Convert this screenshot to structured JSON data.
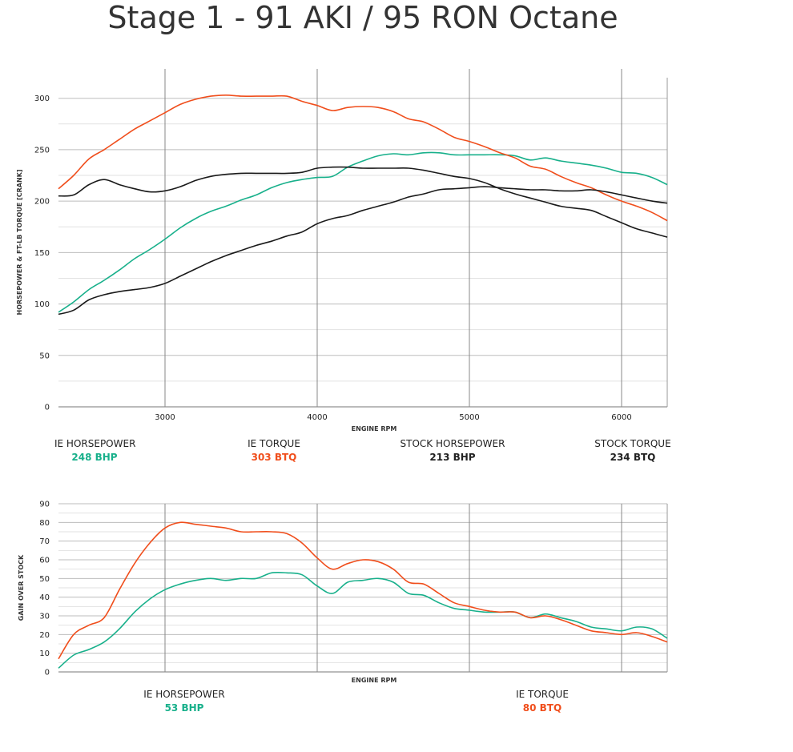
{
  "title": "Stage 1 - 91 AKI / 95 RON Octane",
  "colors": {
    "ie_hp": "#18b08b",
    "ie_tq": "#f04e1c",
    "stock": "#1a1a1a",
    "grid": "#bdbdbd",
    "vgrid": "#888888"
  },
  "chart_data": [
    {
      "type": "line",
      "title": "",
      "xlabel": "ENGINE RPM",
      "ylabel": "HORSEPOWER & FT-LB TORQUE [CRANK]",
      "xlim": [
        2300,
        6300
      ],
      "ylim": [
        0,
        320
      ],
      "xticks": [
        3000,
        4000,
        5000,
        6000
      ],
      "yticks": [
        0,
        50,
        100,
        150,
        200,
        250,
        300
      ],
      "grid": true,
      "series": [
        {
          "name": "IE HORSEPOWER",
          "color": "#18b08b",
          "points": [
            [
              2300,
              92
            ],
            [
              2400,
              102
            ],
            [
              2500,
              114
            ],
            [
              2600,
              123
            ],
            [
              2700,
              133
            ],
            [
              2800,
              144
            ],
            [
              2900,
              153
            ],
            [
              3000,
              163
            ],
            [
              3100,
              174
            ],
            [
              3200,
              183
            ],
            [
              3300,
              190
            ],
            [
              3400,
              195
            ],
            [
              3500,
              201
            ],
            [
              3600,
              206
            ],
            [
              3700,
              213
            ],
            [
              3800,
              218
            ],
            [
              3900,
              221
            ],
            [
              4000,
              223
            ],
            [
              4100,
              224
            ],
            [
              4200,
              233
            ],
            [
              4300,
              239
            ],
            [
              4400,
              244
            ],
            [
              4500,
              246
            ],
            [
              4600,
              245
            ],
            [
              4700,
              247
            ],
            [
              4800,
              247
            ],
            [
              4900,
              245
            ],
            [
              5000,
              245
            ],
            [
              5100,
              245
            ],
            [
              5200,
              245
            ],
            [
              5300,
              244
            ],
            [
              5400,
              240
            ],
            [
              5500,
              242
            ],
            [
              5600,
              239
            ],
            [
              5700,
              237
            ],
            [
              5800,
              235
            ],
            [
              5900,
              232
            ],
            [
              6000,
              228
            ],
            [
              6100,
              227
            ],
            [
              6200,
              223
            ],
            [
              6300,
              216
            ]
          ]
        },
        {
          "name": "IE TORQUE",
          "color": "#f04e1c",
          "points": [
            [
              2300,
              212
            ],
            [
              2400,
              225
            ],
            [
              2500,
              241
            ],
            [
              2600,
              250
            ],
            [
              2700,
              260
            ],
            [
              2800,
              270
            ],
            [
              2900,
              278
            ],
            [
              3000,
              286
            ],
            [
              3100,
              294
            ],
            [
              3200,
              299
            ],
            [
              3300,
              302
            ],
            [
              3400,
              303
            ],
            [
              3500,
              302
            ],
            [
              3600,
              302
            ],
            [
              3700,
              302
            ],
            [
              3800,
              302
            ],
            [
              3900,
              297
            ],
            [
              4000,
              293
            ],
            [
              4100,
              288
            ],
            [
              4200,
              291
            ],
            [
              4300,
              292
            ],
            [
              4400,
              291
            ],
            [
              4500,
              287
            ],
            [
              4600,
              280
            ],
            [
              4700,
              277
            ],
            [
              4800,
              270
            ],
            [
              4900,
              262
            ],
            [
              5000,
              258
            ],
            [
              5100,
              253
            ],
            [
              5200,
              247
            ],
            [
              5300,
              242
            ],
            [
              5400,
              234
            ],
            [
              5500,
              231
            ],
            [
              5600,
              224
            ],
            [
              5700,
              218
            ],
            [
              5800,
              213
            ],
            [
              5900,
              206
            ],
            [
              6000,
              200
            ],
            [
              6100,
              195
            ],
            [
              6200,
              189
            ],
            [
              6300,
              181
            ]
          ]
        },
        {
          "name": "STOCK HORSEPOWER",
          "color": "#1a1a1a",
          "points": [
            [
              2300,
              90
            ],
            [
              2400,
              94
            ],
            [
              2500,
              104
            ],
            [
              2600,
              109
            ],
            [
              2700,
              112
            ],
            [
              2800,
              114
            ],
            [
              2900,
              116
            ],
            [
              3000,
              120
            ],
            [
              3100,
              127
            ],
            [
              3200,
              134
            ],
            [
              3300,
              141
            ],
            [
              3400,
              147
            ],
            [
              3500,
              152
            ],
            [
              3600,
              157
            ],
            [
              3700,
              161
            ],
            [
              3800,
              166
            ],
            [
              3900,
              170
            ],
            [
              4000,
              178
            ],
            [
              4100,
              183
            ],
            [
              4200,
              186
            ],
            [
              4300,
              191
            ],
            [
              4400,
              195
            ],
            [
              4500,
              199
            ],
            [
              4600,
              204
            ],
            [
              4700,
              207
            ],
            [
              4800,
              211
            ],
            [
              4900,
              212
            ],
            [
              5000,
              213
            ],
            [
              5100,
              214
            ],
            [
              5200,
              213
            ],
            [
              5300,
              212
            ],
            [
              5400,
              211
            ],
            [
              5500,
              211
            ],
            [
              5600,
              210
            ],
            [
              5700,
              210
            ],
            [
              5800,
              211
            ],
            [
              5900,
              209
            ],
            [
              6000,
              206
            ],
            [
              6100,
              203
            ],
            [
              6200,
              200
            ],
            [
              6300,
              198
            ]
          ]
        },
        {
          "name": "STOCK TORQUE",
          "color": "#1a1a1a",
          "points": [
            [
              2300,
              205
            ],
            [
              2400,
              206
            ],
            [
              2500,
              216
            ],
            [
              2600,
              221
            ],
            [
              2700,
              216
            ],
            [
              2800,
              212
            ],
            [
              2900,
              209
            ],
            [
              3000,
              210
            ],
            [
              3100,
              214
            ],
            [
              3200,
              220
            ],
            [
              3300,
              224
            ],
            [
              3400,
              226
            ],
            [
              3500,
              227
            ],
            [
              3600,
              227
            ],
            [
              3700,
              227
            ],
            [
              3800,
              227
            ],
            [
              3900,
              228
            ],
            [
              4000,
              232
            ],
            [
              4100,
              233
            ],
            [
              4200,
              233
            ],
            [
              4300,
              232
            ],
            [
              4400,
              232
            ],
            [
              4500,
              232
            ],
            [
              4600,
              232
            ],
            [
              4700,
              230
            ],
            [
              4800,
              227
            ],
            [
              4900,
              224
            ],
            [
              5000,
              222
            ],
            [
              5100,
              218
            ],
            [
              5200,
              212
            ],
            [
              5300,
              207
            ],
            [
              5400,
              203
            ],
            [
              5500,
              199
            ],
            [
              5600,
              195
            ],
            [
              5700,
              193
            ],
            [
              5800,
              191
            ],
            [
              5900,
              185
            ],
            [
              6000,
              179
            ],
            [
              6100,
              173
            ],
            [
              6200,
              169
            ],
            [
              6300,
              165
            ]
          ]
        }
      ]
    },
    {
      "type": "line",
      "title": "",
      "xlabel": "ENGINE RPM",
      "ylabel": "GAIN OVER STOCK",
      "xlim": [
        2300,
        6300
      ],
      "ylim": [
        0,
        90
      ],
      "xticks": [],
      "vgrid_at": [
        3000,
        4000,
        5000,
        6000
      ],
      "yticks": [
        0,
        10,
        20,
        30,
        40,
        50,
        60,
        70,
        80,
        90
      ],
      "grid": true,
      "series": [
        {
          "name": "IE HORSEPOWER",
          "color": "#18b08b",
          "points": [
            [
              2300,
              2
            ],
            [
              2400,
              9
            ],
            [
              2500,
              12
            ],
            [
              2600,
              16
            ],
            [
              2700,
              23
            ],
            [
              2800,
              32
            ],
            [
              2900,
              39
            ],
            [
              3000,
              44
            ],
            [
              3100,
              47
            ],
            [
              3200,
              49
            ],
            [
              3300,
              50
            ],
            [
              3400,
              49
            ],
            [
              3500,
              50
            ],
            [
              3600,
              50
            ],
            [
              3700,
              53
            ],
            [
              3800,
              53
            ],
            [
              3900,
              52
            ],
            [
              4000,
              46
            ],
            [
              4100,
              42
            ],
            [
              4200,
              48
            ],
            [
              4300,
              49
            ],
            [
              4400,
              50
            ],
            [
              4500,
              48
            ],
            [
              4600,
              42
            ],
            [
              4700,
              41
            ],
            [
              4800,
              37
            ],
            [
              4900,
              34
            ],
            [
              5000,
              33
            ],
            [
              5100,
              32
            ],
            [
              5200,
              32
            ],
            [
              5300,
              32
            ],
            [
              5400,
              29
            ],
            [
              5500,
              31
            ],
            [
              5600,
              29
            ],
            [
              5700,
              27
            ],
            [
              5800,
              24
            ],
            [
              5900,
              23
            ],
            [
              6000,
              22
            ],
            [
              6100,
              24
            ],
            [
              6200,
              23
            ],
            [
              6300,
              18
            ]
          ]
        },
        {
          "name": "IE TORQUE",
          "color": "#f04e1c",
          "points": [
            [
              2300,
              7
            ],
            [
              2400,
              20
            ],
            [
              2500,
              25
            ],
            [
              2600,
              29
            ],
            [
              2700,
              44
            ],
            [
              2800,
              58
            ],
            [
              2900,
              69
            ],
            [
              3000,
              77
            ],
            [
              3100,
              80
            ],
            [
              3200,
              79
            ],
            [
              3300,
              78
            ],
            [
              3400,
              77
            ],
            [
              3500,
              75
            ],
            [
              3600,
              75
            ],
            [
              3700,
              75
            ],
            [
              3800,
              74
            ],
            [
              3900,
              69
            ],
            [
              4000,
              61
            ],
            [
              4100,
              55
            ],
            [
              4200,
              58
            ],
            [
              4300,
              60
            ],
            [
              4400,
              59
            ],
            [
              4500,
              55
            ],
            [
              4600,
              48
            ],
            [
              4700,
              47
            ],
            [
              4800,
              42
            ],
            [
              4900,
              37
            ],
            [
              5000,
              35
            ],
            [
              5100,
              33
            ],
            [
              5200,
              32
            ],
            [
              5300,
              32
            ],
            [
              5400,
              29
            ],
            [
              5500,
              30
            ],
            [
              5600,
              28
            ],
            [
              5700,
              25
            ],
            [
              5800,
              22
            ],
            [
              5900,
              21
            ],
            [
              6000,
              20
            ],
            [
              6100,
              21
            ],
            [
              6200,
              19
            ],
            [
              6300,
              16
            ]
          ]
        }
      ]
    }
  ],
  "legend_top": [
    {
      "label": "IE HORSEPOWER",
      "value": "248 BHP",
      "color": "#18b08b"
    },
    {
      "label": "IE TORQUE",
      "value": "303 BTQ",
      "color": "#f04e1c"
    },
    {
      "label": "STOCK HORSEPOWER",
      "value": "213 BHP",
      "color": "#222222"
    },
    {
      "label": "STOCK TORQUE",
      "value": "234 BTQ",
      "color": "#222222"
    }
  ],
  "legend_bottom": [
    {
      "label": "IE HORSEPOWER",
      "value": "53 BHP",
      "color": "#18b08b"
    },
    {
      "label": "IE TORQUE",
      "value": "80 BTQ",
      "color": "#f04e1c"
    }
  ]
}
